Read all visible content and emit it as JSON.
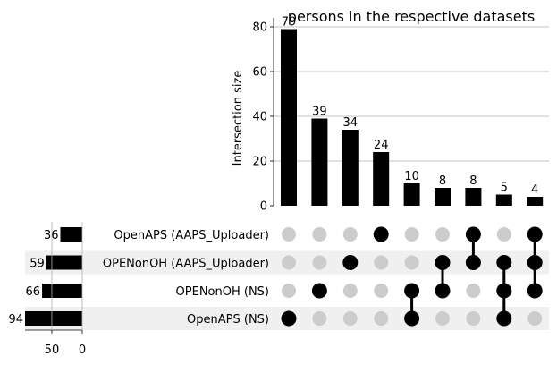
{
  "chart_data": {
    "type": "bar",
    "title": "persons in the respective datasets",
    "ylabel": "Intersection size",
    "ylim": [
      0,
      84
    ],
    "yticks": [
      0,
      20,
      40,
      60,
      80
    ],
    "grid": true,
    "sets": [
      "OpenAPS (AAPS_Uploader)",
      "OPENonOH (AAPS_Uploader)",
      "OPENonOH (NS)",
      "OpenAPS (NS)"
    ],
    "set_sizes": [
      36,
      59,
      66,
      94
    ],
    "set_size_ticks": [
      50,
      0
    ],
    "set_size_xlim": [
      0,
      94
    ],
    "intersections": [
      {
        "members": [
          "OpenAPS (NS)"
        ],
        "value": 79
      },
      {
        "members": [
          "OPENonOH (NS)"
        ],
        "value": 39
      },
      {
        "members": [
          "OPENonOH (AAPS_Uploader)"
        ],
        "value": 34
      },
      {
        "members": [
          "OpenAPS (AAPS_Uploader)"
        ],
        "value": 24
      },
      {
        "members": [
          "OPENonOH (NS)",
          "OpenAPS (NS)"
        ],
        "value": 10
      },
      {
        "members": [
          "OPENonOH (AAPS_Uploader)",
          "OPENonOH (NS)"
        ],
        "value": 8
      },
      {
        "members": [
          "OpenAPS (AAPS_Uploader)",
          "OPENonOH (AAPS_Uploader)"
        ],
        "value": 8
      },
      {
        "members": [
          "OPENonOH (AAPS_Uploader)",
          "OPENonOH (NS)",
          "OpenAPS (NS)"
        ],
        "value": 5
      },
      {
        "members": [
          "OpenAPS (AAPS_Uploader)",
          "OPENonOH (AAPS_Uploader)",
          "OPENonOH (NS)"
        ],
        "value": 4
      }
    ],
    "colors": {
      "bar": "#000000",
      "dot_active": "#000000",
      "dot_inactive": "#cccccc",
      "row_shade": "#f0f0f0",
      "grid": "#b0b0b0"
    }
  }
}
